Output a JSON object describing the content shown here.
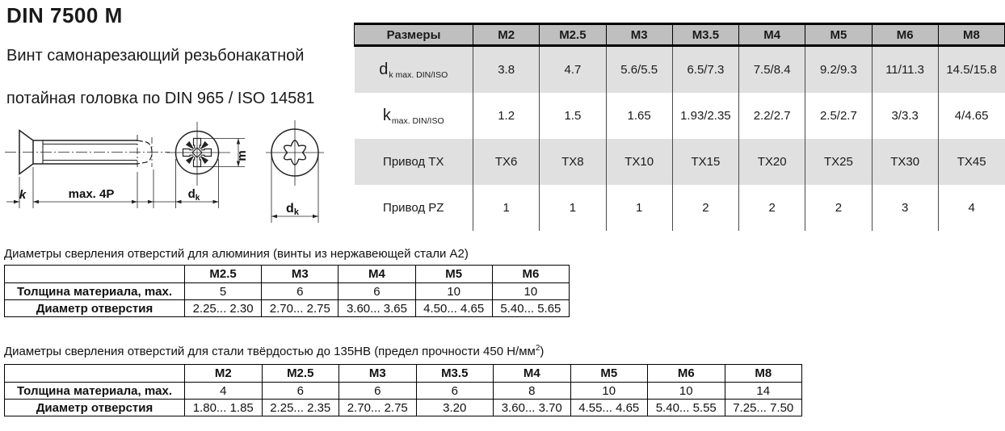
{
  "page": {
    "title": "DIN 7500 M",
    "subtitle1": "Винт самонарезающий резьбонакатной",
    "subtitle2": "потайная головка по DIN 965 / ISO 14581"
  },
  "drawing": {
    "k_label": "k",
    "max4p_label": "max. 4P",
    "m_label": "m",
    "dk_main": "d",
    "dk_sub": "k"
  },
  "main_table": {
    "header": [
      "Размеры",
      "M2",
      "M2.5",
      "M3",
      "M3.5",
      "M4",
      "M5",
      "M6",
      "M8"
    ],
    "rows": [
      {
        "label_main": "d",
        "label_sub": "k max. DIN/ISO",
        "shaded": true,
        "values": [
          "3.8",
          "4.7",
          "5.6/5.5",
          "6.5/7.3",
          "7.5/8.4",
          "9.2/9.3",
          "11/11.3",
          "14.5/15.8"
        ]
      },
      {
        "label_main": "k",
        "label_sub": "max. DIN/ISO",
        "shaded": false,
        "values": [
          "1.2",
          "1.5",
          "1.65",
          "1.93/2.35",
          "2.2/2.7",
          "2.5/2.7",
          "3/3.3",
          "4/4.65"
        ]
      },
      {
        "label_main": "Привод TX",
        "label_sub": "",
        "shaded": true,
        "values": [
          "TX6",
          "TX8",
          "TX10",
          "TX15",
          "TX20",
          "TX25",
          "TX30",
          "TX45"
        ]
      },
      {
        "label_main": "Привод PZ",
        "label_sub": "",
        "shaded": false,
        "values": [
          "1",
          "1",
          "1",
          "2",
          "2",
          "2",
          "3",
          "4"
        ]
      }
    ]
  },
  "aluminum_table": {
    "caption": "Диаметры сверления отверстий для алюминия (винты из нержавеющей стали А2)",
    "header": [
      "",
      "M2.5",
      "M3",
      "M4",
      "M5",
      "M6"
    ],
    "rows": [
      {
        "label": "Толщина материала, max.",
        "values": [
          "5",
          "6",
          "6",
          "10",
          "10"
        ]
      },
      {
        "label": "Диаметр отверстия",
        "values": [
          "2.25... 2.30",
          "2.70... 2.75",
          "3.60... 3.65",
          "4.50... 4.65",
          "5.40... 5.65"
        ]
      }
    ]
  },
  "steel_table": {
    "caption_main": "Диаметры сверления отверстий для стали твёрдостью до 135HB (предел прочности 450 Н/мм",
    "caption_sup": "2",
    "caption_tail": ")",
    "header": [
      "",
      "M2",
      "M2.5",
      "M3",
      "M3.5",
      "M4",
      "M5",
      "M6",
      "M8"
    ],
    "rows": [
      {
        "label": "Толщина материала, max.",
        "values": [
          "4",
          "6",
          "6",
          "6",
          "8",
          "10",
          "10",
          "14"
        ]
      },
      {
        "label": "Диаметр отверстия",
        "values": [
          "1.80... 1.85",
          "2.25... 2.35",
          "2.70... 2.75",
          "3.20",
          "3.60... 3.70",
          "4.55... 4.65",
          "5.40... 5.55",
          "7.25... 7.50"
        ]
      }
    ]
  }
}
